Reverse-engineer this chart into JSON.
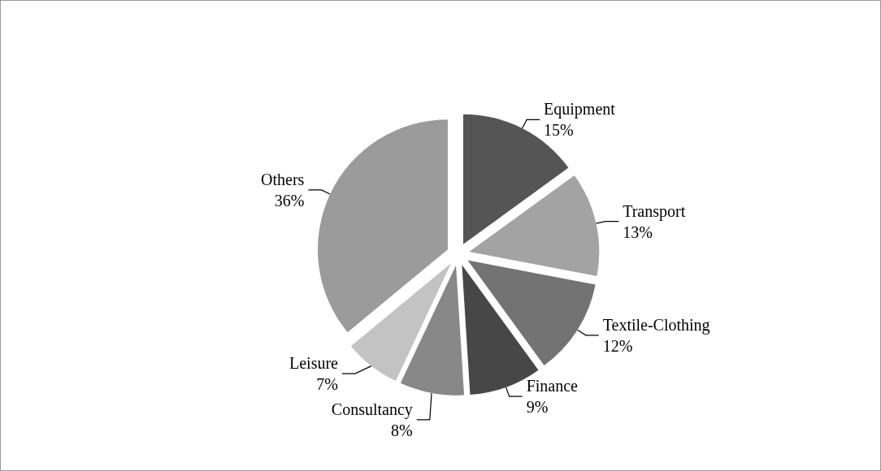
{
  "chart_data": {
    "type": "pie",
    "categories": [
      "Equipment",
      "Transport",
      "Textile-Clothing",
      "Finance",
      "Consultancy",
      "Leisure",
      "Others"
    ],
    "values": [
      15,
      13,
      12,
      9,
      8,
      7,
      36
    ],
    "value_labels": [
      "15%",
      "13%",
      "12%",
      "9%",
      "8%",
      "7%",
      "36%"
    ],
    "colors": [
      "#555555",
      "#a3a3a3",
      "#737373",
      "#474747",
      "#888888",
      "#c3c3c3",
      "#9b9b9b"
    ],
    "legend": false
  }
}
